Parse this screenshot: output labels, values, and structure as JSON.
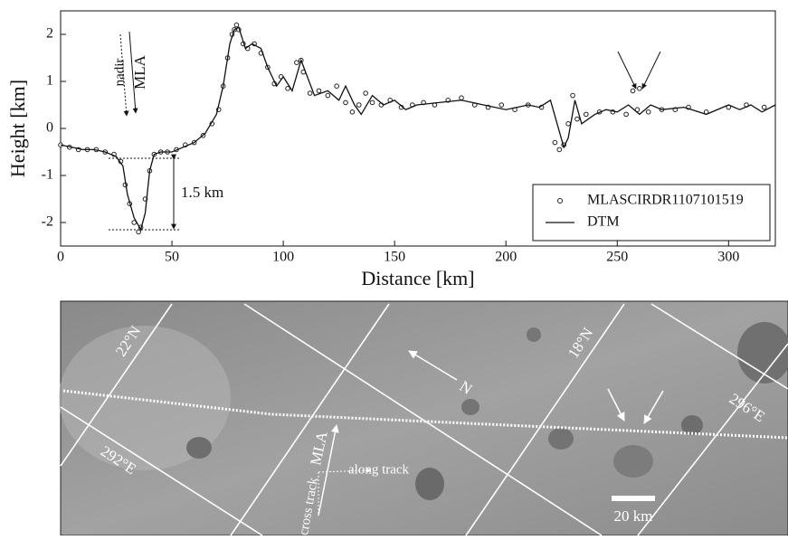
{
  "chart_data": {
    "type": "line",
    "xlabel": "Distance [km]",
    "ylabel": "Height [km]",
    "xlim": [
      0,
      321
    ],
    "ylim": [
      -2.5,
      2.5
    ],
    "xticks": [
      0,
      50,
      100,
      150,
      200,
      250,
      300
    ],
    "yticks": [
      -2,
      -1,
      0,
      1,
      2
    ],
    "legend": "lower right",
    "annotations": {
      "nadir": "nadir",
      "mla": "MLA",
      "depth": "1.5 km"
    },
    "series": [
      {
        "name": "MLASCIRDR1107101519",
        "type": "scatter",
        "color": "#222222",
        "x": [
          0,
          4,
          8,
          12,
          16,
          20,
          24,
          27,
          29,
          31,
          33,
          35,
          36,
          38,
          40,
          42,
          45,
          48,
          52,
          56,
          60,
          64,
          68,
          71,
          73,
          75,
          77,
          78,
          79,
          80,
          82,
          84,
          87,
          90,
          93,
          96,
          99,
          102,
          106,
          108,
          109,
          112,
          116,
          120,
          124,
          128,
          131,
          134,
          137,
          140,
          144,
          148,
          153,
          158,
          163,
          168,
          174,
          180,
          186,
          192,
          198,
          204,
          210,
          216,
          222,
          224,
          226,
          228,
          230,
          232,
          236,
          242,
          248,
          254,
          257,
          259,
          260,
          264,
          270,
          276,
          282,
          290,
          300,
          308,
          316
        ],
        "values": [
          -0.35,
          -0.4,
          -0.45,
          -0.45,
          -0.45,
          -0.5,
          -0.55,
          -0.7,
          -1.2,
          -1.6,
          -2.0,
          -2.2,
          -2.1,
          -1.5,
          -0.9,
          -0.55,
          -0.5,
          -0.5,
          -0.45,
          -0.35,
          -0.3,
          -0.15,
          0.1,
          0.4,
          0.9,
          1.5,
          2.0,
          2.1,
          2.2,
          2.1,
          1.8,
          1.7,
          1.8,
          1.6,
          1.3,
          0.95,
          1.1,
          0.85,
          1.4,
          1.45,
          1.2,
          0.75,
          0.8,
          0.7,
          0.9,
          0.55,
          0.35,
          0.5,
          0.75,
          0.55,
          0.5,
          0.6,
          0.45,
          0.5,
          0.55,
          0.5,
          0.6,
          0.65,
          0.5,
          0.45,
          0.5,
          0.4,
          0.5,
          0.45,
          -0.3,
          -0.45,
          -0.35,
          0.1,
          0.7,
          0.2,
          0.3,
          0.35,
          0.35,
          0.3,
          0.8,
          0.4,
          0.85,
          0.35,
          0.4,
          0.4,
          0.45,
          0.35,
          0.45,
          0.5,
          0.45
        ]
      },
      {
        "name": "DTM",
        "type": "line",
        "color": "#111111",
        "x": [
          0,
          5,
          10,
          15,
          20,
          25,
          28,
          30,
          33,
          36,
          38,
          40,
          42,
          45,
          50,
          55,
          60,
          65,
          70,
          73,
          76,
          78,
          80,
          83,
          86,
          90,
          93,
          97,
          100,
          104,
          108,
          110,
          114,
          120,
          125,
          128,
          132,
          135,
          140,
          145,
          150,
          155,
          160,
          170,
          180,
          190,
          200,
          210,
          215,
          220,
          223,
          226,
          228,
          231,
          234,
          240,
          245,
          250,
          255,
          260,
          265,
          270,
          280,
          290,
          300,
          305,
          310,
          315,
          321
        ],
        "values": [
          -0.35,
          -0.4,
          -0.45,
          -0.45,
          -0.5,
          -0.6,
          -0.8,
          -1.4,
          -1.9,
          -2.15,
          -1.8,
          -0.9,
          -0.55,
          -0.5,
          -0.5,
          -0.4,
          -0.3,
          -0.1,
          0.3,
          0.9,
          1.8,
          2.1,
          2.15,
          1.7,
          1.8,
          1.7,
          1.3,
          0.9,
          1.1,
          0.8,
          1.45,
          1.2,
          0.7,
          0.8,
          0.6,
          0.9,
          0.5,
          0.3,
          0.7,
          0.5,
          0.6,
          0.4,
          0.5,
          0.55,
          0.6,
          0.5,
          0.4,
          0.5,
          0.45,
          0.6,
          0.1,
          -0.4,
          -0.2,
          0.6,
          0.1,
          0.3,
          0.4,
          0.35,
          0.5,
          0.3,
          0.5,
          0.4,
          0.45,
          0.3,
          0.5,
          0.4,
          0.5,
          0.35,
          0.5
        ]
      }
    ]
  },
  "image_panel": {
    "labels": {
      "lat22": "22°N",
      "lat18": "18°N",
      "lon292": "292°E",
      "lon296": "296°E",
      "north": "N",
      "mla": "MLA",
      "along": "along track",
      "cross": "cross track",
      "scale": "20 km"
    }
  }
}
